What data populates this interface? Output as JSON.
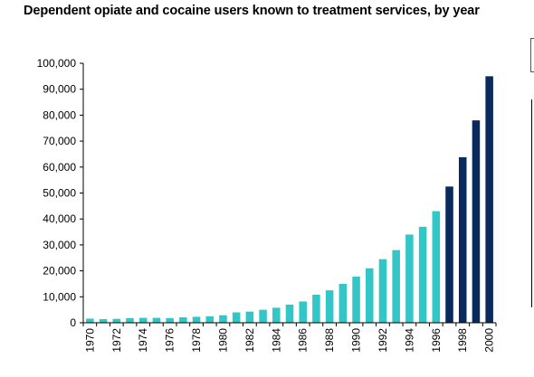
{
  "chart_data": {
    "type": "bar",
    "title": "Dependent opiate and cocaine users known to treatment services, by year",
    "xlabel": "",
    "ylabel": "",
    "ylim": [
      0,
      100000
    ],
    "y_ticks": [
      "0",
      "10,000",
      "20,000",
      "30,000",
      "40,000",
      "50,000",
      "60,000",
      "70,000",
      "80,000",
      "90,000",
      "100,000"
    ],
    "x_tick_labels": [
      "1970",
      "1972",
      "1974",
      "1976",
      "1978",
      "1980",
      "1982",
      "1984",
      "1986",
      "1988",
      "1990",
      "1992",
      "1994",
      "1996",
      "1998",
      "2000"
    ],
    "grid": false,
    "colors": {
      "light": "#33c6c6",
      "dark": "#0a2a5e"
    },
    "categories": [
      "1970",
      "1971",
      "1972",
      "1973",
      "1974",
      "1975",
      "1976",
      "1977",
      "1978",
      "1979",
      "1980",
      "1981",
      "1982",
      "1983",
      "1984",
      "1985",
      "1986",
      "1987",
      "1988",
      "1989",
      "1990",
      "1991",
      "1992",
      "1993",
      "1994",
      "1995",
      "1996",
      "1997",
      "1998",
      "1999",
      "2000"
    ],
    "values": [
      1600,
      1400,
      1500,
      1800,
      1900,
      1900,
      1800,
      2100,
      2300,
      2500,
      2900,
      4000,
      4300,
      5000,
      5800,
      7000,
      8200,
      10800,
      12500,
      15000,
      17800,
      21000,
      24500,
      28000,
      34000,
      37000,
      43000,
      52500,
      63800,
      78000,
      95000
    ],
    "bar_color_keys": [
      "light",
      "light",
      "light",
      "light",
      "light",
      "light",
      "light",
      "light",
      "light",
      "light",
      "light",
      "light",
      "light",
      "light",
      "light",
      "light",
      "light",
      "light",
      "light",
      "light",
      "light",
      "light",
      "light",
      "light",
      "light",
      "light",
      "light",
      "dark",
      "dark",
      "dark",
      "dark"
    ]
  }
}
